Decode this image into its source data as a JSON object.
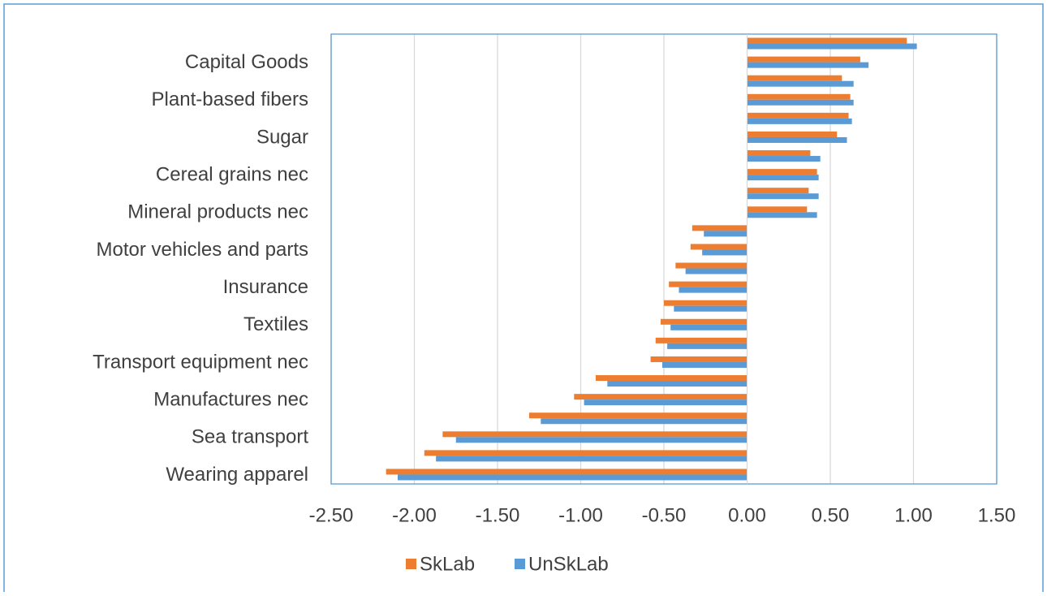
{
  "chart_data": {
    "type": "hbar",
    "categories": [
      null,
      "Capital Goods",
      null,
      "Plant-based fibers",
      null,
      "Sugar",
      null,
      "Cereal grains nec",
      null,
      "Mineral products nec",
      null,
      "Motor vehicles and parts",
      null,
      "Insurance",
      null,
      "Textiles",
      null,
      "Transport equipment nec",
      null,
      "Manufactures nec",
      null,
      "Sea transport",
      null,
      "Wearing apparel"
    ],
    "series": [
      {
        "name": "SkLab",
        "color": "#ed7d31",
        "values": [
          0.96,
          0.68,
          0.57,
          0.62,
          0.61,
          0.54,
          0.38,
          0.42,
          0.37,
          0.36,
          -0.33,
          -0.34,
          -0.43,
          -0.47,
          -0.5,
          -0.52,
          -0.55,
          -0.58,
          -0.91,
          -1.04,
          -1.31,
          -1.83,
          -1.94,
          -2.17
        ]
      },
      {
        "name": "UnSkLab",
        "color": "#5b9bd5",
        "values": [
          1.02,
          0.73,
          0.64,
          0.64,
          0.63,
          0.6,
          0.44,
          0.43,
          0.43,
          0.42,
          -0.26,
          -0.27,
          -0.37,
          -0.41,
          -0.44,
          -0.46,
          -0.48,
          -0.51,
          -0.84,
          -0.98,
          -1.24,
          -1.75,
          -1.87,
          -2.1
        ]
      }
    ],
    "xlim": [
      -2.5,
      1.5
    ],
    "xticks": [
      {
        "value": -2.5,
        "label": "-2.50"
      },
      {
        "value": -2,
        "label": "-2.00"
      },
      {
        "value": -1.5,
        "label": "-1.50"
      },
      {
        "value": -1,
        "label": "-1.00"
      },
      {
        "value": -0.5,
        "label": "-0.50"
      },
      {
        "value": 0,
        "label": "0.00"
      },
      {
        "value": 0.5,
        "label": "0.50"
      },
      {
        "value": 1,
        "label": "1.00"
      },
      {
        "value": 1.5,
        "label": "1.50"
      }
    ],
    "grid": true,
    "legend": "bottom"
  }
}
